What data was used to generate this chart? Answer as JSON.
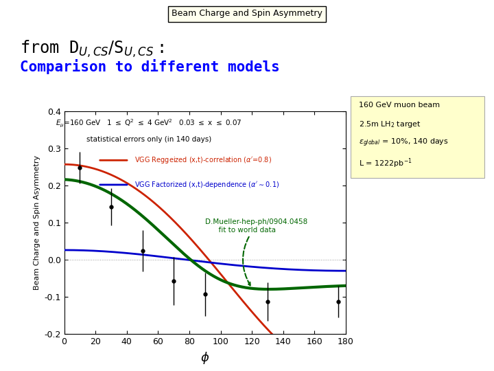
{
  "title_box": "Beam Charge and Spin Asymmetry",
  "ylabel": "Beam Charge and Spin Asymmetry",
  "xlabel": "ϕ",
  "xlim": [
    0,
    180
  ],
  "ylim": [
    -0.2,
    0.4
  ],
  "yticks": [
    -0.2,
    -0.1,
    0.0,
    0.1,
    0.2,
    0.3,
    0.4
  ],
  "xticks": [
    0,
    20,
    40,
    60,
    80,
    100,
    120,
    140,
    160,
    180
  ],
  "bg_color": "#FFFFFF",
  "plot_bg": "#FFFFFF",
  "data_points_x": [
    10,
    30,
    50,
    70,
    90,
    130,
    175
  ],
  "data_points_y": [
    0.248,
    0.143,
    0.024,
    -0.057,
    -0.093,
    -0.113,
    -0.113
  ],
  "data_errors_y": [
    0.042,
    0.05,
    0.055,
    0.065,
    0.058,
    0.052,
    0.042
  ],
  "red_color": "#CC2200",
  "blue_color": "#0000CC",
  "green_color": "#006600",
  "box_color": "#FFFFCC"
}
